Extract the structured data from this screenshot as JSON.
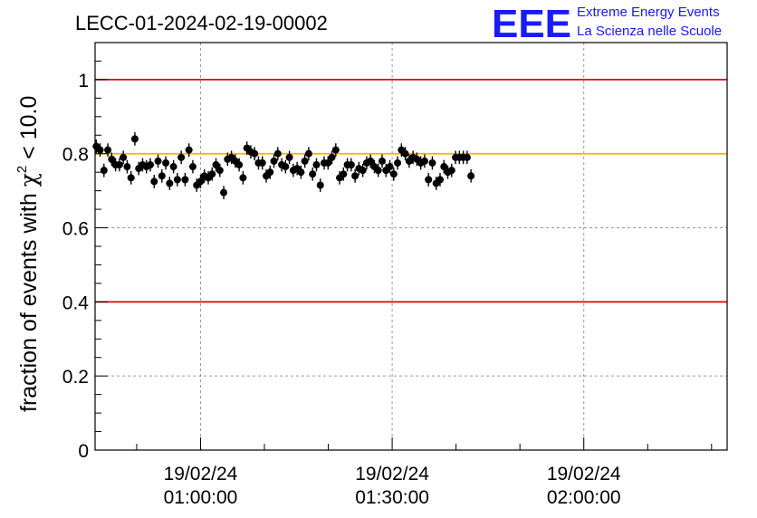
{
  "chart_data": {
    "type": "scatter",
    "title": "LECC-01-2024-02-19-00002",
    "ylabel_main": "fraction of events with ",
    "ylabel_chi": "χ",
    "ylabel_sup": "2",
    "ylabel_tail": " < 10.0",
    "ylim": [
      0,
      1.1
    ],
    "yticks": [
      0,
      0.2,
      0.4,
      0.6,
      0.8,
      1
    ],
    "ytick_labels": [
      "0",
      "0.2",
      "0.4",
      "0.6",
      "0.8",
      "1"
    ],
    "xlim": [
      0.7,
      164.3
    ],
    "xticks": [
      {
        "x": 28.0,
        "date": "19/02/24",
        "time": "01:00:00"
      },
      {
        "x": 77.6,
        "date": "19/02/24",
        "time": "01:30:00"
      },
      {
        "x": 127.2,
        "date": "19/02/24",
        "time": "02:00:00"
      }
    ],
    "grid": true,
    "reference_lines": [
      {
        "y": 1.0,
        "color": "#e00000"
      },
      {
        "y": 0.8,
        "color": "#ffb000"
      },
      {
        "y": 0.4,
        "color": "#e00000"
      }
    ],
    "marker_color": "#000000",
    "y_error": 0.018,
    "values": [
      0.82,
      0.81,
      0.755,
      0.81,
      0.785,
      0.77,
      0.77,
      0.79,
      0.765,
      0.735,
      0.84,
      0.76,
      0.77,
      0.765,
      0.77,
      0.725,
      0.78,
      0.74,
      0.775,
      0.72,
      0.765,
      0.73,
      0.79,
      0.73,
      0.81,
      0.765,
      0.715,
      0.725,
      0.74,
      0.735,
      0.745,
      0.77,
      0.755,
      0.695,
      0.785,
      0.79,
      0.78,
      0.77,
      0.735,
      0.815,
      0.805,
      0.8,
      0.775,
      0.775,
      0.74,
      0.75,
      0.78,
      0.8,
      0.77,
      0.765,
      0.79,
      0.755,
      0.76,
      0.75,
      0.78,
      0.8,
      0.745,
      0.77,
      0.715,
      0.775,
      0.775,
      0.79,
      0.81,
      0.735,
      0.745,
      0.77,
      0.77,
      0.74,
      0.76,
      0.755,
      0.775,
      0.78,
      0.765,
      0.755,
      0.78,
      0.755,
      0.765,
      0.745,
      0.775,
      0.81,
      0.8,
      0.78,
      0.79,
      0.785,
      0.775,
      0.78,
      0.73,
      0.775,
      0.72,
      0.73,
      0.765,
      0.75,
      0.755,
      0.79,
      0.79,
      0.79,
      0.79,
      0.74
    ]
  },
  "logo": {
    "mark": "EEE",
    "line1": "Extreme Energy Events",
    "line2": "La Scienza nelle Scuole"
  }
}
